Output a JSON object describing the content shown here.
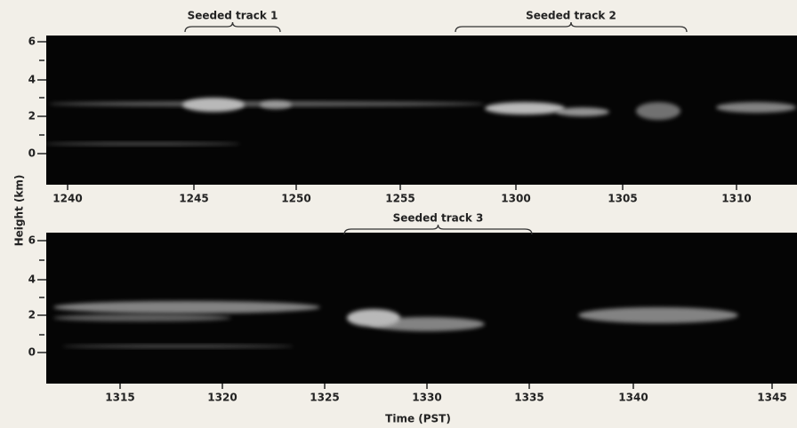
{
  "figure": {
    "ylabel": "Height (km)",
    "xlabel": "Time (PST)",
    "panels": [
      {
        "yticks": [
          "6",
          "4",
          "2",
          "0"
        ],
        "xticks": [
          "1240",
          "1245",
          "1250",
          "1255",
          "1300",
          "1305",
          "1310"
        ],
        "annotations": [
          "Seeded track 1",
          "Seeded track 2"
        ]
      },
      {
        "yticks": [
          "6",
          "4",
          "2",
          "0"
        ],
        "xticks": [
          "1315",
          "1320",
          "1325",
          "1330",
          "1335",
          "1340",
          "1345"
        ],
        "annotations": [
          "Seeded track 3"
        ]
      }
    ]
  }
}
